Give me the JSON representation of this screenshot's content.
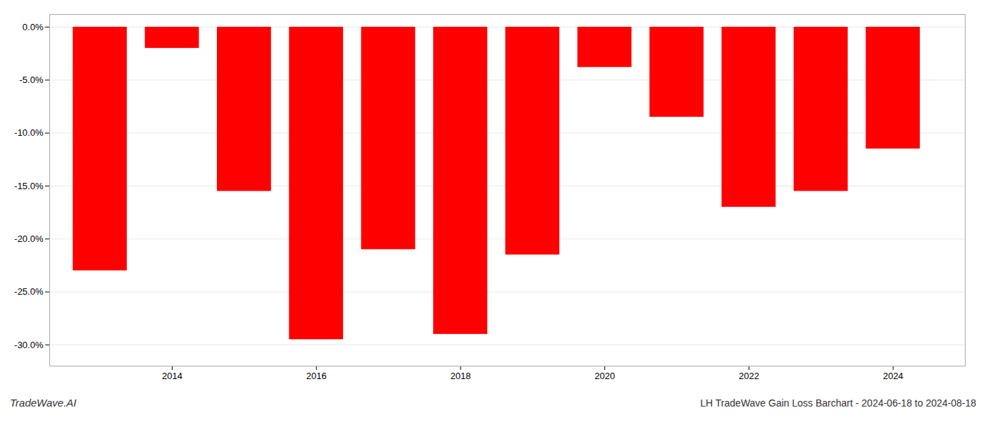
{
  "chart_data": {
    "type": "bar",
    "title": "LH TradeWave Gain Loss Barchart - 2024-06-18 to 2024-08-18",
    "annotations": [
      "TradeWave.AI"
    ],
    "x": [
      2013,
      2014,
      2015,
      2016,
      2017,
      2018,
      2019,
      2020,
      2021,
      2022,
      2023,
      2024
    ],
    "values": [
      -0.23,
      -0.02,
      -0.155,
      -0.295,
      -0.21,
      -0.29,
      -0.215,
      -0.038,
      -0.085,
      -0.17,
      -0.155,
      -0.115
    ],
    "color": "#ff0000",
    "xlim": [
      2012.3,
      2025.0
    ],
    "xticks": [
      2014,
      2016,
      2018,
      2020,
      2022,
      2024
    ],
    "ylim": [
      -0.32,
      0.012
    ],
    "yticks": [
      {
        "value": 0.0,
        "label": "0.0%"
      },
      {
        "value": -0.05,
        "label": "-5.0%"
      },
      {
        "value": -0.1,
        "label": "-10.0%"
      },
      {
        "value": -0.15,
        "label": "-15.0%"
      },
      {
        "value": -0.2,
        "label": "-20.0%"
      },
      {
        "value": -0.25,
        "label": "-25.0%"
      },
      {
        "value": -0.3,
        "label": "-30.0%"
      }
    ],
    "grid": true
  }
}
